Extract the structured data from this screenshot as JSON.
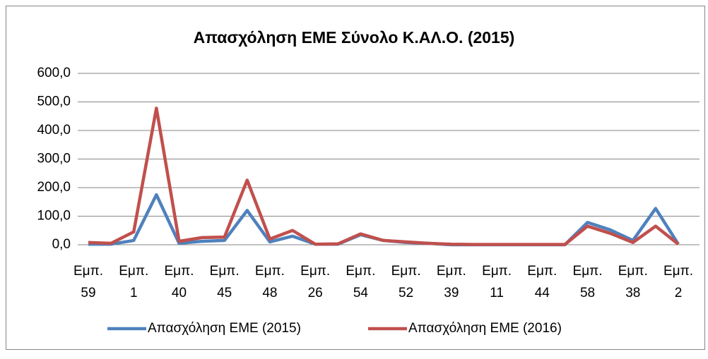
{
  "chart_data": {
    "type": "line",
    "title": "Απασχόληση ΕΜΕ Σύνολο Κ.ΑΛ.Ο. (2015)",
    "categories": [
      "Εμπ. 59",
      null,
      "Εμπ. 1",
      null,
      "Εμπ. 40",
      null,
      "Εμπ. 45",
      null,
      "Εμπ. 48",
      null,
      "Εμπ. 26",
      null,
      "Εμπ. 54",
      null,
      "Εμπ. 52",
      null,
      "Εμπ. 39",
      null,
      "Εμπ. 11",
      null,
      "Εμπ. 44",
      null,
      "Εμπ. 58",
      null,
      "Εμπ. 38",
      null,
      "Εμπ. 2"
    ],
    "series": [
      {
        "name": "Απασχόληση ΕΜΕ (2015)",
        "color": "#4f81bd",
        "values": [
          2,
          2,
          15,
          175,
          5,
          12,
          15,
          120,
          10,
          30,
          2,
          2,
          35,
          15,
          8,
          5,
          0,
          0,
          0,
          0,
          0,
          0,
          78,
          52,
          15,
          127,
          2
        ]
      },
      {
        "name": "Απασχόληση ΕΜΕ (2016)",
        "color": "#c0504d",
        "values": [
          8,
          5,
          45,
          478,
          12,
          25,
          27,
          226,
          20,
          50,
          2,
          3,
          38,
          15,
          10,
          5,
          2,
          1,
          1,
          1,
          1,
          1,
          65,
          40,
          8,
          65,
          2
        ]
      }
    ],
    "ylim": [
      0,
      600
    ],
    "yticks": [
      {
        "value": 0,
        "label": "0,0"
      },
      {
        "value": 100,
        "label": "100,0"
      },
      {
        "value": 200,
        "label": "200,0"
      },
      {
        "value": 300,
        "label": "300,0"
      },
      {
        "value": 400,
        "label": "400,0"
      },
      {
        "value": 500,
        "label": "500,0"
      },
      {
        "value": 600,
        "label": "600,0"
      }
    ],
    "grid": true,
    "legend": "bottom"
  }
}
